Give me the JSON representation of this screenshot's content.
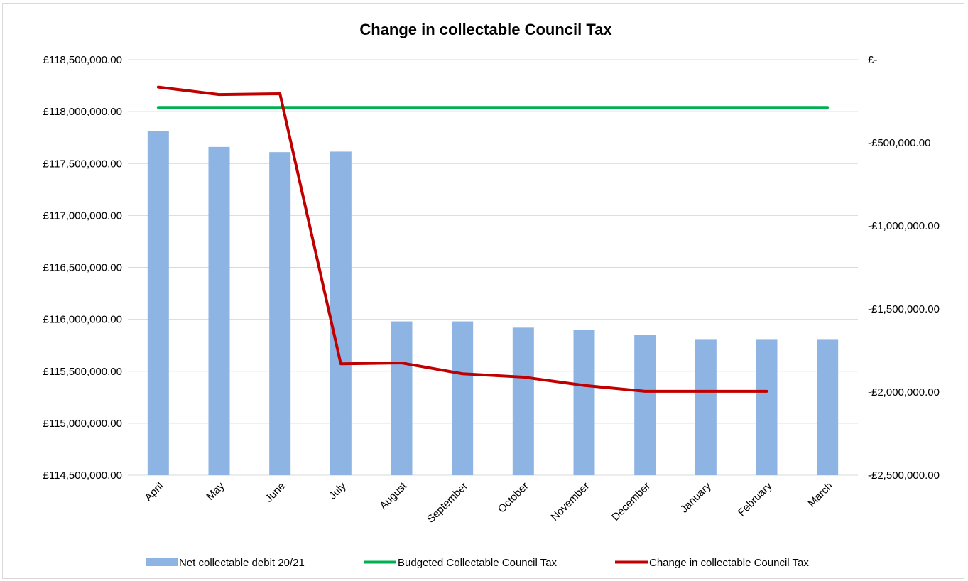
{
  "chart_data": {
    "type": "bar",
    "title": "Change in collectable Council Tax",
    "categories": [
      "April",
      "May",
      "June",
      "July",
      "August",
      "September",
      "October",
      "November",
      "December",
      "January",
      "February",
      "March"
    ],
    "left_axis": {
      "min": 114500000,
      "max": 118500000,
      "tick_labels": [
        "£114,500,000.00",
        "£115,000,000.00",
        "£115,500,000.00",
        "£116,000,000.00",
        "£116,500,000.00",
        "£117,000,000.00",
        "£117,500,000.00",
        "£118,000,000.00",
        "£118,500,000.00"
      ],
      "tick_values": [
        114500000,
        115000000,
        115500000,
        116000000,
        116500000,
        117000000,
        117500000,
        118000000,
        118500000
      ]
    },
    "right_axis": {
      "min": -2500000,
      "max": 0,
      "tick_labels": [
        "-£2,500,000.00",
        "-£2,000,000.00",
        "-£1,500,000.00",
        "-£1,000,000.00",
        "-£500,000.00",
        "£-"
      ],
      "tick_values": [
        -2500000,
        -2000000,
        -1500000,
        -1000000,
        -500000,
        0
      ]
    },
    "grid": true,
    "legend_position": "bottom",
    "series": [
      {
        "name": "Net collectable debit 20/21",
        "kind": "bar",
        "axis": "left",
        "color": "#8eb4e3",
        "values": [
          117810000,
          117660000,
          117610000,
          117615000,
          115980000,
          115980000,
          115920000,
          115895000,
          115850000,
          115810000,
          115810000,
          115810000
        ]
      },
      {
        "name": "Budgeted Collectable Council Tax",
        "kind": "line",
        "axis": "left",
        "color": "#00b050",
        "values": [
          118040000,
          118040000,
          118040000,
          118040000,
          118040000,
          118040000,
          118040000,
          118040000,
          118040000,
          118040000,
          118040000,
          118040000
        ]
      },
      {
        "name": "Change in collectable Council Tax",
        "kind": "line",
        "axis": "right",
        "color": "#c00000",
        "values": [
          -165000,
          -210000,
          -205000,
          -1830000,
          -1825000,
          -1890000,
          -1910000,
          -1960000,
          -1995000,
          -1995000,
          -1995000,
          null
        ]
      }
    ]
  }
}
